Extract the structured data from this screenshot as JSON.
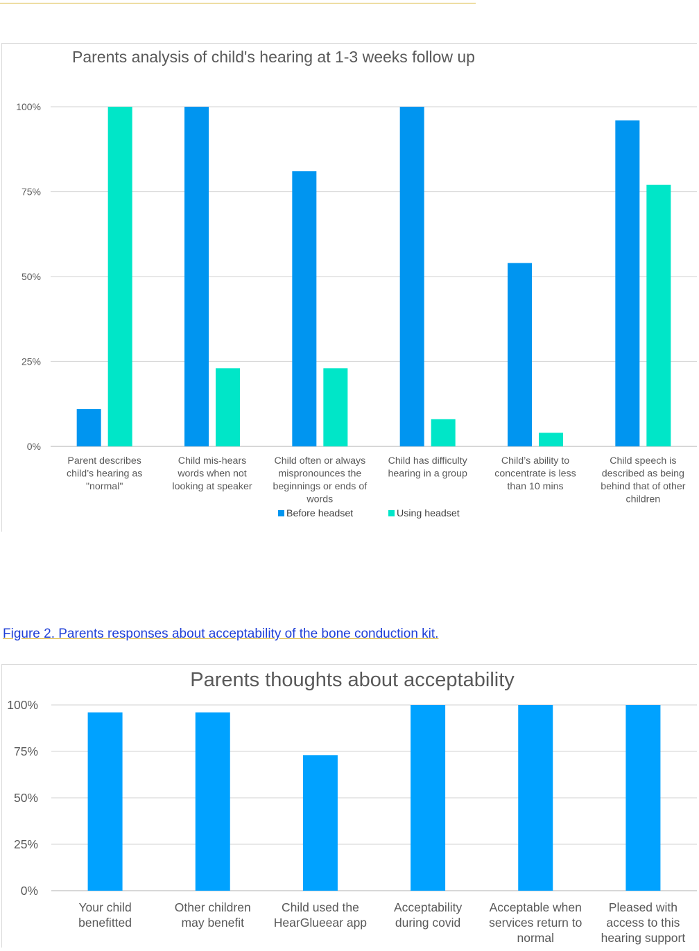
{
  "figure2_caption": "Figure 2.  Parents responses about acceptability of the bone conduction  kit.",
  "chart_data": [
    {
      "type": "bar",
      "title": "Parents analysis of child's hearing at 1-3 weeks follow up",
      "categories": [
        [
          "Parent describes",
          "child’s hearing as",
          "\"normal\""
        ],
        [
          "Child mis-hears",
          "words when not",
          "looking at speaker"
        ],
        [
          "Child often or always",
          "mispronounces the",
          "beginnings or ends of",
          "words"
        ],
        [
          "Child has difficulty",
          "hearing in a group"
        ],
        [
          "Child’s ability to",
          "concentrate is less",
          "than 10 mins"
        ],
        [
          "Child speech is",
          "described as being",
          "behind that of other",
          "children"
        ]
      ],
      "series": [
        {
          "name": "Before headset",
          "values": [
            11,
            100,
            81,
            100,
            54,
            96
          ],
          "color": "#0095f0"
        },
        {
          "name": "Using headset",
          "values": [
            100,
            23,
            23,
            8,
            4,
            77
          ],
          "color": "#00e6c8"
        }
      ],
      "ylim": [
        0,
        100
      ],
      "yticks": [
        "0%",
        "25%",
        "50%",
        "75%",
        "100%"
      ],
      "grid": true,
      "legend": "bottom"
    },
    {
      "type": "bar",
      "title": "Parents thoughts about acceptability",
      "categories": [
        [
          "Your child",
          "benefitted"
        ],
        [
          "Other children",
          "may benefit"
        ],
        [
          "Child used the",
          "HearGlueear app"
        ],
        [
          "Acceptability",
          "during covid"
        ],
        [
          "Acceptable when",
          "services return to",
          "normal"
        ],
        [
          "Pleased with",
          "access to this",
          "hearing support"
        ]
      ],
      "series": [
        {
          "values": [
            96,
            96,
            73,
            100,
            100,
            100
          ],
          "color": "#00a2ff"
        }
      ],
      "ylim": [
        0,
        100
      ],
      "yticks": [
        "0%",
        "25%",
        "50%",
        "75%",
        "100%"
      ],
      "grid": true,
      "legend": "none"
    }
  ]
}
